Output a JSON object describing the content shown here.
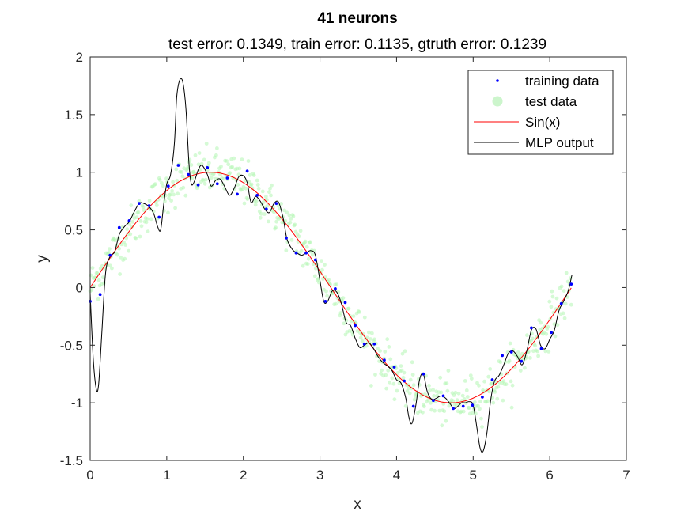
{
  "chart_data": {
    "type": "line",
    "title": "41 neurons",
    "subtitle": "test error: 0.1349, train error: 0.1135, gtruth error: 0.1239",
    "xlabel": "x",
    "ylabel": "y",
    "xlim": [
      0,
      7
    ],
    "ylim": [
      -1.5,
      2
    ],
    "xticks": [
      0,
      1,
      2,
      3,
      4,
      5,
      6,
      7
    ],
    "yticks": [
      -1.5,
      -1,
      -0.5,
      0,
      0.5,
      1,
      1.5,
      2
    ],
    "xtick_labels": [
      "0",
      "1",
      "2",
      "3",
      "4",
      "5",
      "6",
      "7"
    ],
    "ytick_labels": [
      "-1.5",
      "-1",
      "-0.5",
      "0",
      "0.5",
      "1",
      "1.5",
      "2"
    ],
    "grid": false,
    "legend_position": "top-right",
    "legend": [
      "training data",
      "test data",
      "Sin(x)",
      "MLP output"
    ],
    "colors": {
      "training": "#0000ff",
      "test": "#b3f5b3",
      "sin": "#ff0000",
      "mlp": "#000000"
    },
    "training_data": {
      "x": [
        0.0,
        0.13,
        0.26,
        0.38,
        0.51,
        0.64,
        0.77,
        0.9,
        1.02,
        1.15,
        1.28,
        1.41,
        1.53,
        1.66,
        1.79,
        1.92,
        2.05,
        2.18,
        2.3,
        2.43,
        2.56,
        2.69,
        2.82,
        2.94,
        3.07,
        3.2,
        3.33,
        3.46,
        3.58,
        3.71,
        3.84,
        3.97,
        4.1,
        4.22,
        4.35,
        4.48,
        4.61,
        4.74,
        4.87,
        4.99,
        5.12,
        5.25,
        5.38,
        5.5,
        5.63,
        5.76,
        5.89,
        6.02,
        6.15,
        6.28
      ],
      "y": [
        -0.12,
        -0.06,
        0.28,
        0.52,
        0.58,
        0.73,
        0.71,
        0.61,
        0.88,
        1.06,
        0.98,
        0.89,
        1.04,
        0.9,
        0.95,
        0.81,
        1.01,
        0.8,
        0.68,
        0.73,
        0.43,
        0.3,
        0.3,
        0.24,
        -0.12,
        -0.01,
        -0.13,
        -0.33,
        -0.49,
        -0.49,
        -0.63,
        -0.69,
        -0.81,
        -1.03,
        -0.75,
        -0.98,
        -0.94,
        -1.05,
        -1.03,
        -1.02,
        -0.95,
        -0.8,
        -0.59,
        -0.56,
        -0.64,
        -0.35,
        -0.53,
        -0.39,
        -0.14,
        0.03
      ]
    },
    "test_data": {
      "description_note": "",
      "count": 600
    },
    "series": [
      {
        "name": "Sin(x)",
        "function": "sin",
        "x_range": [
          0,
          6.28
        ]
      },
      {
        "name": "MLP output",
        "x": [
          0.0,
          0.04,
          0.08,
          0.11,
          0.15,
          0.2,
          0.26,
          0.32,
          0.38,
          0.45,
          0.51,
          0.57,
          0.64,
          0.7,
          0.77,
          0.83,
          0.88,
          0.92,
          0.96,
          1.0,
          1.05,
          1.1,
          1.13,
          1.17,
          1.21,
          1.25,
          1.29,
          1.32,
          1.36,
          1.41,
          1.46,
          1.53,
          1.58,
          1.64,
          1.7,
          1.76,
          1.82,
          1.88,
          1.94,
          2.0,
          2.05,
          2.1,
          2.16,
          2.22,
          2.28,
          2.34,
          2.4,
          2.46,
          2.52,
          2.57,
          2.64,
          2.7,
          2.76,
          2.82,
          2.88,
          2.94,
          3.0,
          3.05,
          3.1,
          3.16,
          3.22,
          3.28,
          3.34,
          3.4,
          3.46,
          3.52,
          3.58,
          3.64,
          3.7,
          3.76,
          3.82,
          3.88,
          3.94,
          4.0,
          4.06,
          4.12,
          4.16,
          4.2,
          4.25,
          4.3,
          4.35,
          4.4,
          4.46,
          4.52,
          4.58,
          4.64,
          4.7,
          4.75,
          4.8,
          4.85,
          4.9,
          4.95,
          5.0,
          5.05,
          5.09,
          5.13,
          5.18,
          5.23,
          5.28,
          5.34,
          5.4,
          5.46,
          5.52,
          5.58,
          5.64,
          5.7,
          5.76,
          5.82,
          5.88,
          5.94,
          6.0,
          6.06,
          6.12,
          6.18,
          6.24,
          6.29
        ],
        "y": [
          -0.05,
          -0.62,
          -0.88,
          -0.84,
          -0.42,
          0.12,
          0.27,
          0.31,
          0.46,
          0.53,
          0.57,
          0.65,
          0.73,
          0.73,
          0.7,
          0.64,
          0.53,
          0.5,
          0.72,
          0.9,
          0.98,
          1.25,
          1.65,
          1.8,
          1.78,
          1.55,
          1.08,
          0.9,
          0.92,
          1.02,
          1.06,
          0.98,
          0.88,
          0.93,
          0.94,
          0.87,
          0.8,
          0.86,
          0.96,
          0.97,
          0.91,
          0.74,
          0.79,
          0.75,
          0.68,
          0.65,
          0.73,
          0.74,
          0.6,
          0.42,
          0.33,
          0.3,
          0.28,
          0.3,
          0.32,
          0.28,
          0.06,
          -0.12,
          -0.12,
          -0.03,
          -0.04,
          -0.14,
          -0.3,
          -0.33,
          -0.44,
          -0.52,
          -0.5,
          -0.48,
          -0.53,
          -0.6,
          -0.65,
          -0.68,
          -0.72,
          -0.8,
          -0.83,
          -0.96,
          -1.12,
          -1.18,
          -1.03,
          -0.8,
          -0.75,
          -0.9,
          -0.97,
          -0.96,
          -0.94,
          -0.96,
          -1.01,
          -1.05,
          -1.03,
          -1.0,
          -1.0,
          -0.99,
          -1.02,
          -1.22,
          -1.39,
          -1.42,
          -1.26,
          -0.97,
          -0.81,
          -0.76,
          -0.67,
          -0.57,
          -0.55,
          -0.6,
          -0.67,
          -0.55,
          -0.37,
          -0.36,
          -0.5,
          -0.53,
          -0.45,
          -0.37,
          -0.2,
          -0.12,
          -0.03,
          0.11
        ]
      }
    ]
  }
}
